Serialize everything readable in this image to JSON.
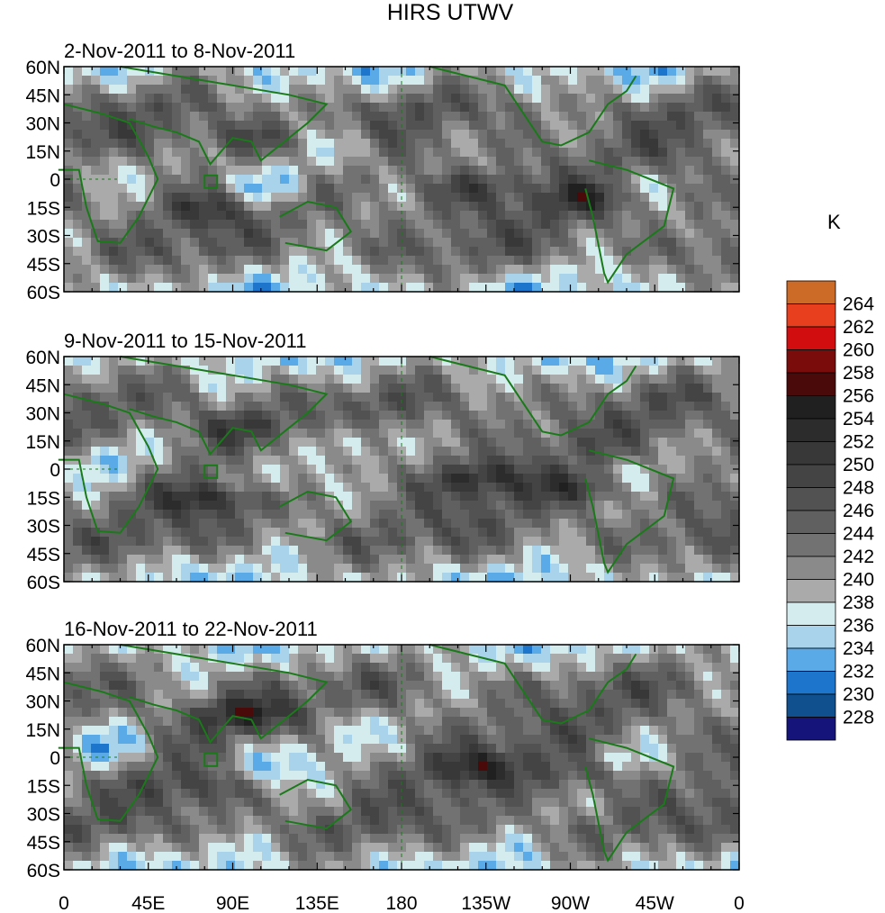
{
  "chart_data": {
    "type": "heatmap",
    "title": "HIRS UTWV",
    "units": "K",
    "x_ticks": [
      "0",
      "45E",
      "90E",
      "135E",
      "180",
      "135W",
      "90W",
      "45W",
      "0"
    ],
    "y_ticks": [
      "60N",
      "45N",
      "30N",
      "15N",
      "0",
      "15S",
      "30S",
      "45S",
      "60S"
    ],
    "lon_range": [
      0,
      360
    ],
    "lat_range": [
      -60,
      60
    ],
    "panels": [
      {
        "subtitle": "2-Nov-2011 to 8-Nov-2011"
      },
      {
        "subtitle": "9-Nov-2011 to 15-Nov-2011"
      },
      {
        "subtitle": "16-Nov-2011 to 22-Nov-2011"
      }
    ],
    "colorbar": {
      "labels": [
        "264",
        "262",
        "260",
        "258",
        "256",
        "254",
        "252",
        "250",
        "248",
        "246",
        "244",
        "242",
        "240",
        "238",
        "236",
        "234",
        "232",
        "230",
        "228"
      ],
      "colors": [
        "#cc6a28",
        "#e8401e",
        "#d10d10",
        "#7a0c0c",
        "#4a0a0a",
        "#202020",
        "#2c2c2c",
        "#383838",
        "#444444",
        "#525252",
        "#606060",
        "#727272",
        "#8a8a8a",
        "#aaaaaa",
        "#d4ecee",
        "#a8d3ea",
        "#5aaae8",
        "#1e76cc",
        "#10508e",
        "#14147a"
      ]
    }
  }
}
